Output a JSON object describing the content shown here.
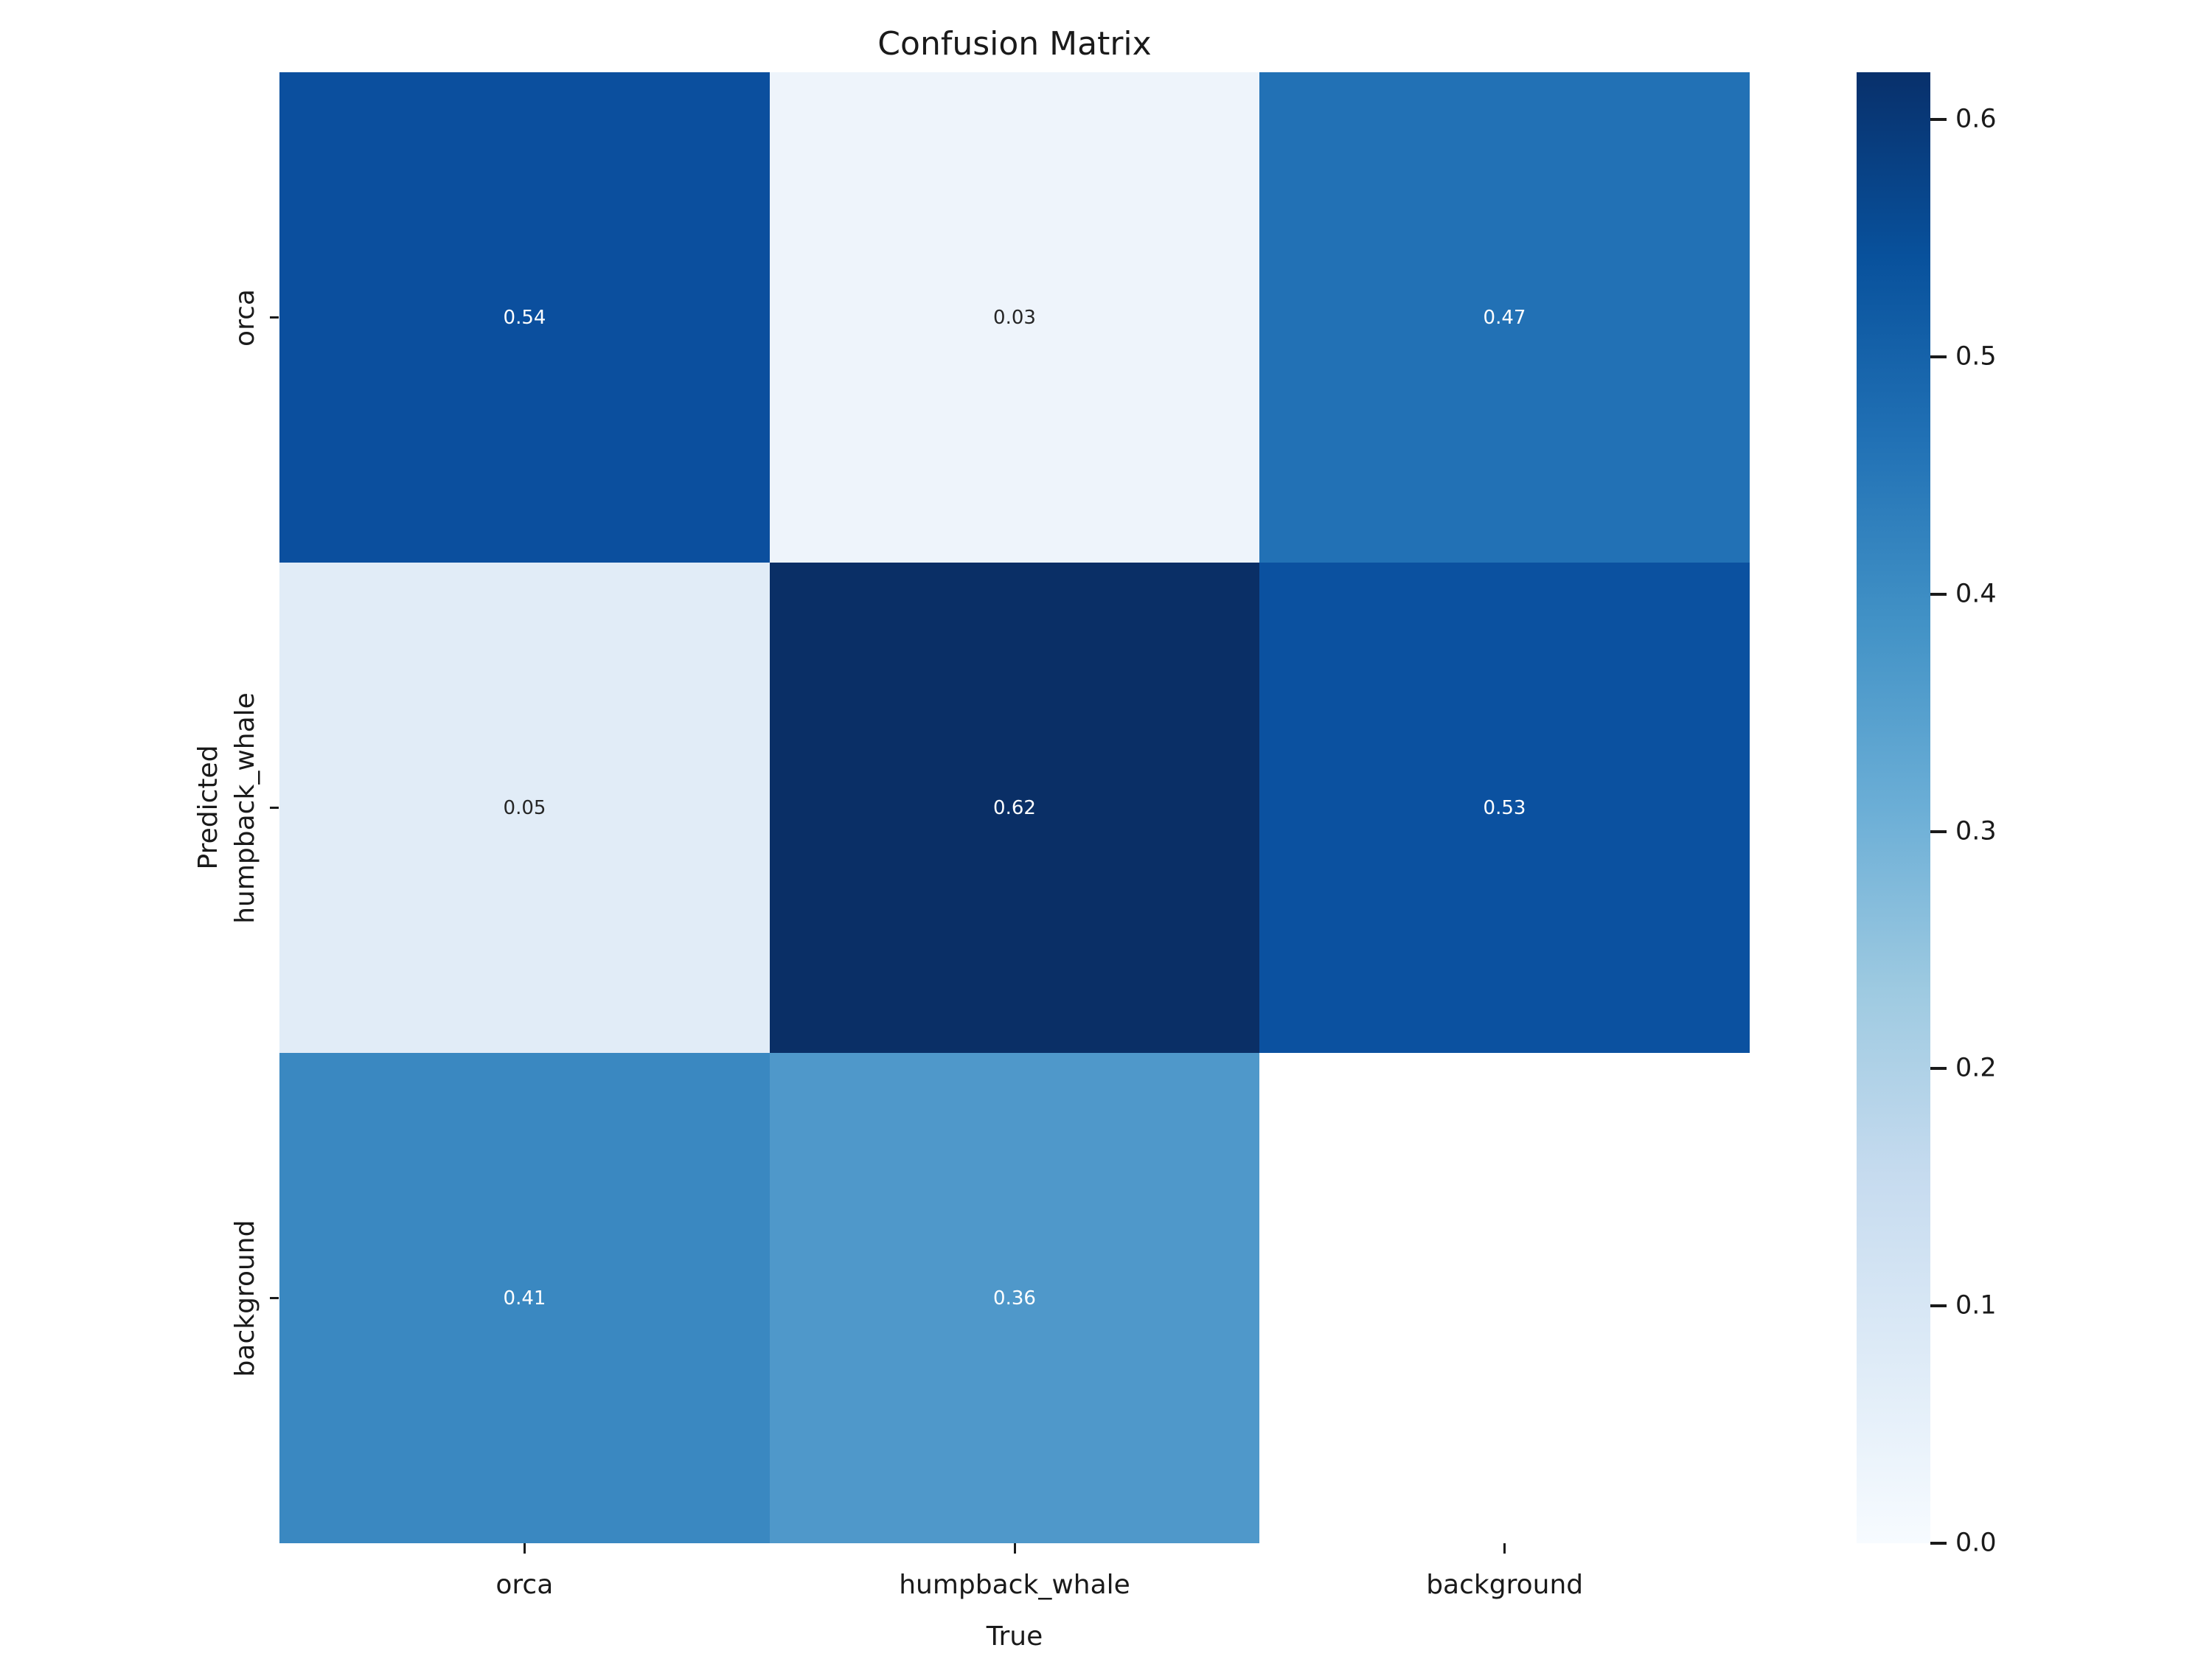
{
  "figure": {
    "background": "#ffffff"
  },
  "chart_data": {
    "type": "heatmap",
    "title": "Confusion Matrix",
    "xlabel": "True",
    "ylabel": "Predicted",
    "x_categories": [
      "orca",
      "humpback_whale",
      "background"
    ],
    "y_categories": [
      "orca",
      "humpback_whale",
      "background"
    ],
    "matrix": [
      [
        0.54,
        0.03,
        0.47
      ],
      [
        0.05,
        0.62,
        0.53
      ],
      [
        0.41,
        0.36,
        null
      ]
    ],
    "annotations": [
      [
        "0.54",
        "0.03",
        "0.47"
      ],
      [
        "0.05",
        "0.62",
        "0.53"
      ],
      [
        "0.41",
        "0.36",
        ""
      ]
    ],
    "cell_colors": [
      [
        "#0b4f9e",
        "#eef4fb",
        "#2271b5"
      ],
      [
        "#e1ecf7",
        "#0a2f66",
        "#0b51a0"
      ],
      [
        "#3a88c1",
        "#4f98ca",
        "none"
      ]
    ],
    "annotation_colors": [
      [
        "#ffffff",
        "#262626",
        "#ffffff"
      ],
      [
        "#262626",
        "#ffffff",
        "#ffffff"
      ],
      [
        "#ffffff",
        "#ffffff",
        "none"
      ]
    ],
    "colormap": "Blues",
    "vmin": 0.0,
    "vmax": 0.62,
    "grid": false,
    "colorbar": {
      "position": "right",
      "tick_values": [
        0.0,
        0.1,
        0.2,
        0.3,
        0.4,
        0.5,
        0.6
      ],
      "tick_labels": [
        "0.0",
        "0.1",
        "0.2",
        "0.3",
        "0.4",
        "0.5",
        "0.6"
      ],
      "gradient_stops": [
        {
          "t": 0.0,
          "color": "#f7fbff"
        },
        {
          "t": 0.125,
          "color": "#deebf7"
        },
        {
          "t": 0.25,
          "color": "#c6dbef"
        },
        {
          "t": 0.375,
          "color": "#9ecae1"
        },
        {
          "t": 0.5,
          "color": "#6baed6"
        },
        {
          "t": 0.625,
          "color": "#4292c6"
        },
        {
          "t": 0.75,
          "color": "#2171b5"
        },
        {
          "t": 0.875,
          "color": "#08519c"
        },
        {
          "t": 1.0,
          "color": "#08306b"
        }
      ]
    }
  },
  "style": {
    "text_color": "#1a1a1a"
  }
}
